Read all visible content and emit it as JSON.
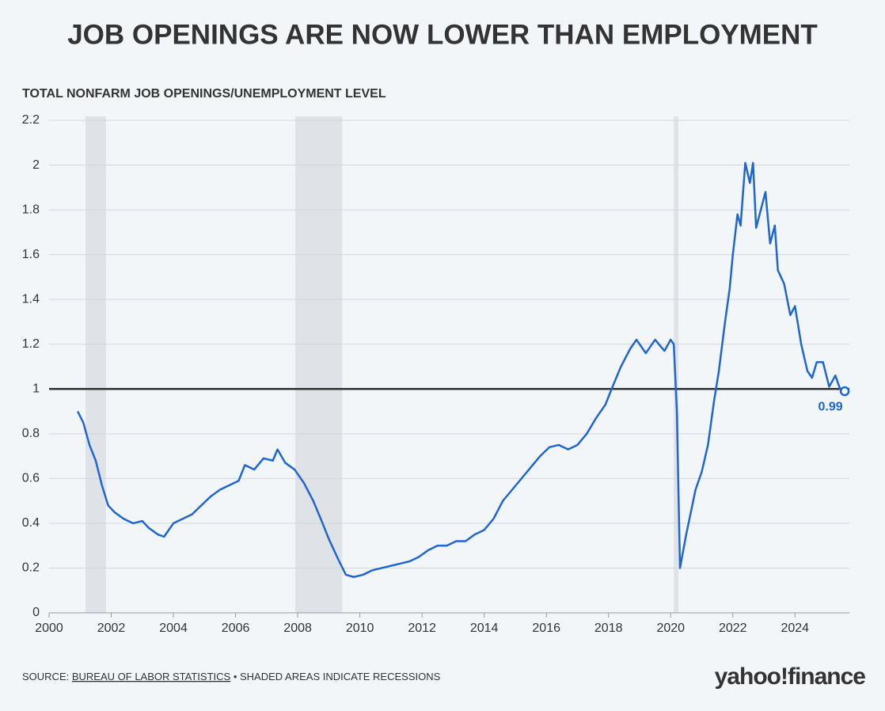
{
  "chart_data": {
    "type": "line",
    "title": "JOB OPENINGS ARE NOW LOWER THAN EMPLOYMENT",
    "subtitle": "TOTAL NONFARM JOB OPENINGS/UNEMPLOYMENT LEVEL",
    "source_label": "SOURCE:",
    "source_name": "BUREAU OF LABOR STATISTICS",
    "note": "• SHADED AREAS INDICATE RECESSIONS",
    "logo": "yahoo!finance",
    "x": [
      2000.92,
      2001.1,
      2001.3,
      2001.5,
      2001.7,
      2001.9,
      2002.1,
      2002.4,
      2002.7,
      2003.0,
      2003.2,
      2003.5,
      2003.7,
      2004.0,
      2004.3,
      2004.6,
      2004.9,
      2005.2,
      2005.5,
      2005.8,
      2006.1,
      2006.3,
      2006.6,
      2006.9,
      2007.2,
      2007.35,
      2007.6,
      2007.9,
      2008.2,
      2008.5,
      2008.8,
      2009.0,
      2009.3,
      2009.55,
      2009.8,
      2010.1,
      2010.4,
      2010.7,
      2011.0,
      2011.3,
      2011.6,
      2011.9,
      2012.2,
      2012.5,
      2012.8,
      2013.1,
      2013.4,
      2013.7,
      2014.0,
      2014.3,
      2014.6,
      2014.9,
      2015.2,
      2015.5,
      2015.8,
      2016.1,
      2016.4,
      2016.7,
      2017.0,
      2017.3,
      2017.6,
      2017.9,
      2018.1,
      2018.4,
      2018.7,
      2018.9,
      2019.2,
      2019.5,
      2019.8,
      2020.0,
      2020.1,
      2020.2,
      2020.3,
      2020.5,
      2020.8,
      2021.0,
      2021.2,
      2021.4,
      2021.55,
      2021.75,
      2021.9,
      2022.0,
      2022.15,
      2022.25,
      2022.4,
      2022.55,
      2022.65,
      2022.75,
      2022.9,
      2023.05,
      2023.2,
      2023.35,
      2023.45,
      2023.65,
      2023.85,
      2024.0,
      2024.2,
      2024.4,
      2024.55,
      2024.7,
      2024.9,
      2025.1,
      2025.3,
      2025.45,
      2025.6
    ],
    "series": [
      {
        "name": "Job openings/unemployment",
        "color": "#1f66d1",
        "values": [
          0.9,
          0.85,
          0.75,
          0.68,
          0.57,
          0.48,
          0.45,
          0.42,
          0.4,
          0.41,
          0.38,
          0.35,
          0.34,
          0.4,
          0.42,
          0.44,
          0.48,
          0.52,
          0.55,
          0.57,
          0.59,
          0.66,
          0.64,
          0.69,
          0.68,
          0.73,
          0.67,
          0.64,
          0.58,
          0.5,
          0.4,
          0.33,
          0.24,
          0.17,
          0.16,
          0.17,
          0.19,
          0.2,
          0.21,
          0.22,
          0.23,
          0.25,
          0.28,
          0.3,
          0.3,
          0.32,
          0.32,
          0.35,
          0.37,
          0.42,
          0.5,
          0.55,
          0.6,
          0.65,
          0.7,
          0.74,
          0.75,
          0.73,
          0.75,
          0.8,
          0.87,
          0.93,
          1.0,
          1.1,
          1.18,
          1.22,
          1.16,
          1.22,
          1.17,
          1.22,
          1.2,
          0.9,
          0.2,
          0.35,
          0.55,
          0.63,
          0.75,
          0.95,
          1.08,
          1.3,
          1.45,
          1.6,
          1.78,
          1.73,
          2.01,
          1.92,
          2.01,
          1.72,
          1.8,
          1.88,
          1.65,
          1.73,
          1.53,
          1.47,
          1.33,
          1.37,
          1.2,
          1.08,
          1.05,
          1.12,
          1.12,
          1.01,
          1.06,
          1.0,
          0.99
        ]
      }
    ],
    "recessions": [
      [
        2001.17,
        2001.83
      ],
      [
        2007.92,
        2009.43
      ],
      [
        2020.1,
        2020.25
      ]
    ],
    "reference_line": 1,
    "xlim": [
      2000,
      2025.75
    ],
    "xticks": [
      2000,
      2002,
      2004,
      2006,
      2008,
      2010,
      2012,
      2014,
      2016,
      2018,
      2020,
      2022,
      2024
    ],
    "ylim": [
      0,
      2.2
    ],
    "yticks": [
      0,
      0.2,
      0.4,
      0.6,
      0.8,
      1,
      1.2,
      1.4,
      1.6,
      1.8,
      2,
      2.2
    ],
    "grid": true
  }
}
